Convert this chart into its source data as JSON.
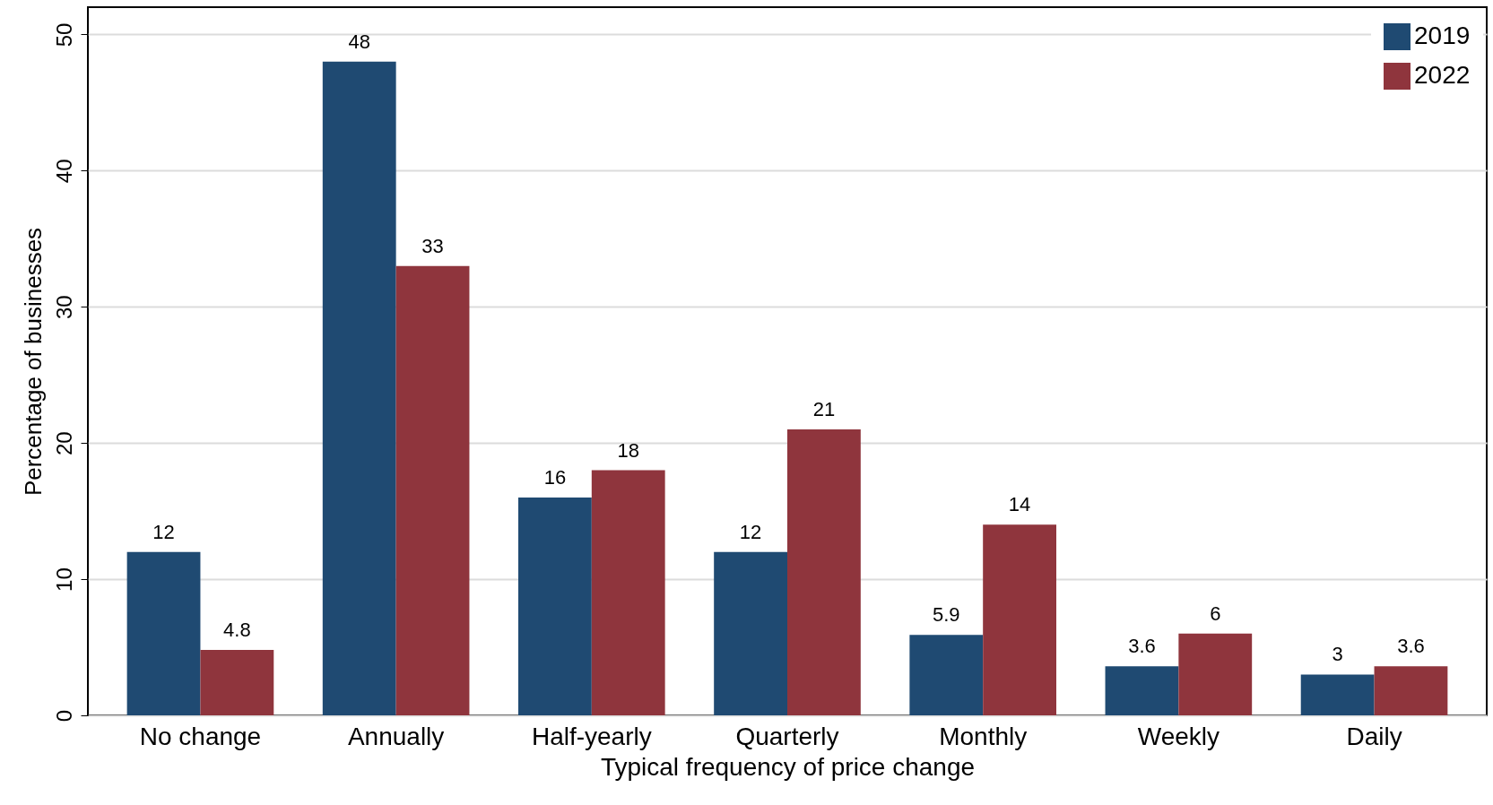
{
  "chart_data": {
    "type": "bar",
    "xlabel": "Typical frequency of price change",
    "ylabel": "Percentage of businesses",
    "categories": [
      "No change",
      "Annually",
      "Half-yearly",
      "Quarterly",
      "Monthly",
      "Weekly",
      "Daily"
    ],
    "series": [
      {
        "name": "2019",
        "color": "#1f4a72",
        "values": [
          12,
          48,
          16,
          12,
          5.9,
          3.6,
          3
        ]
      },
      {
        "name": "2022",
        "color": "#8f353d",
        "values": [
          4.8,
          33,
          18,
          21,
          14,
          6,
          3.6
        ]
      }
    ],
    "ylim": [
      0,
      52
    ],
    "yticks": [
      0,
      10,
      20,
      30,
      40,
      50
    ],
    "grid": "y",
    "legend": "top right",
    "data_labels": true
  }
}
